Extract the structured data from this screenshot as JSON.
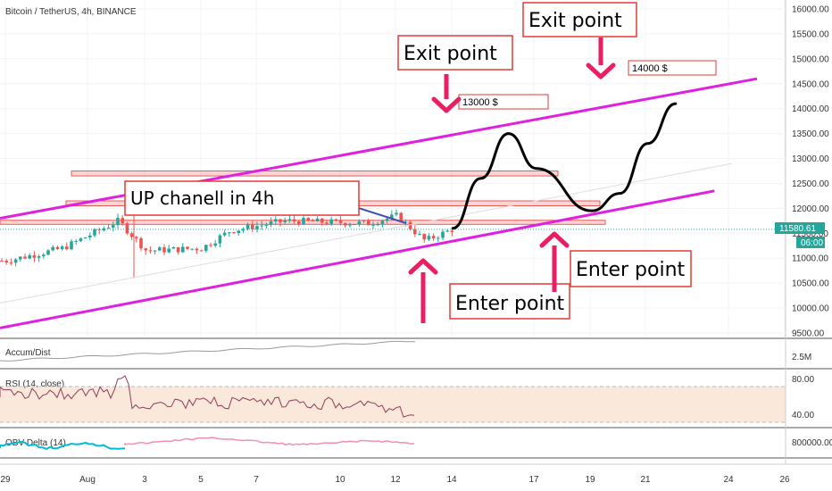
{
  "symbol_label": "Bitcoin / TetherUS, 4h, BINANCE",
  "colors": {
    "up": "#26a69a",
    "down": "#ef5350",
    "channel": "#e020e0",
    "annotation_box": "#e53935",
    "arrow": "#e91e63",
    "trendline": "#3f51b5",
    "price_tag": "#26a69a",
    "obv": "#00bcd4"
  },
  "last_price": "11580.61",
  "countdown": "06:00",
  "chart_data": {
    "type": "line",
    "main": {
      "title": "Bitcoin / TetherUS, 4h, BINANCE",
      "ylim": [
        9500,
        16000
      ],
      "y_ticks": [
        "16000.00",
        "15500.00",
        "15000.00",
        "14500.00",
        "14000.00",
        "13500.00",
        "13000.00",
        "12500.00",
        "12000.00",
        "11500.00",
        "11000.00",
        "10500.00",
        "10000.00",
        "9500.00"
      ],
      "x_ticks": [
        "29",
        "Aug",
        "3",
        "5",
        "7",
        "10",
        "12",
        "14",
        "17",
        "19",
        "21",
        "24",
        "26"
      ],
      "price_series": [
        {
          "x": "Jul 29",
          "close": 10950
        },
        {
          "x": "Jul 31",
          "close": 11200
        },
        {
          "x": "Aug 1",
          "close": 11750
        },
        {
          "x": "Aug 2",
          "close": 11150
        },
        {
          "x": "Aug 4",
          "close": 11200
        },
        {
          "x": "Aug 5",
          "close": 11550
        },
        {
          "x": "Aug 7",
          "close": 11750
        },
        {
          "x": "Aug 10",
          "close": 11700
        },
        {
          "x": "Aug 11",
          "close": 11850
        },
        {
          "x": "Aug 12",
          "close": 11350
        },
        {
          "x": "Aug 13",
          "close": 11580
        }
      ],
      "projection": [
        {
          "x": "Aug 13",
          "y": 11600
        },
        {
          "x": "Aug 14",
          "y": 12600
        },
        {
          "x": "Aug 15",
          "y": 13500
        },
        {
          "x": "Aug 16",
          "y": 12800
        },
        {
          "x": "Aug 18",
          "y": 11950
        },
        {
          "x": "Aug 19",
          "y": 12300
        },
        {
          "x": "Aug 20",
          "y": 13300
        },
        {
          "x": "Aug 21",
          "y": 14100
        }
      ],
      "channel_upper": [
        {
          "x": "Jul 29",
          "y": 11800
        },
        {
          "x": "Aug 22",
          "y": 14600
        }
      ],
      "channel_lower": [
        {
          "x": "Jul 29",
          "y": 9600
        },
        {
          "x": "Aug 24",
          "y": 12350
        }
      ],
      "resistance_zones": [
        [
          12650,
          12750
        ],
        [
          12050,
          12150
        ],
        [
          11680,
          11760
        ]
      ],
      "annotations": [
        {
          "text": "UP chanell in 4h"
        },
        {
          "text": "Exit point"
        },
        {
          "text": "Exit point"
        },
        {
          "text": "Enter point"
        },
        {
          "text": "Enter point"
        }
      ],
      "price_labels": [
        "13000 $",
        "14000 $"
      ]
    },
    "accum_dist": {
      "title": "Accum/Dist",
      "y_ticks": [
        "2.5M"
      ]
    },
    "rsi": {
      "title": "RSI (14, close)",
      "y_ticks": [
        "80.00",
        "40.00"
      ],
      "band": [
        30,
        70
      ]
    },
    "obv_delta": {
      "title": "OBV Delta (14)",
      "y_ticks": [
        "800000.00"
      ]
    }
  }
}
